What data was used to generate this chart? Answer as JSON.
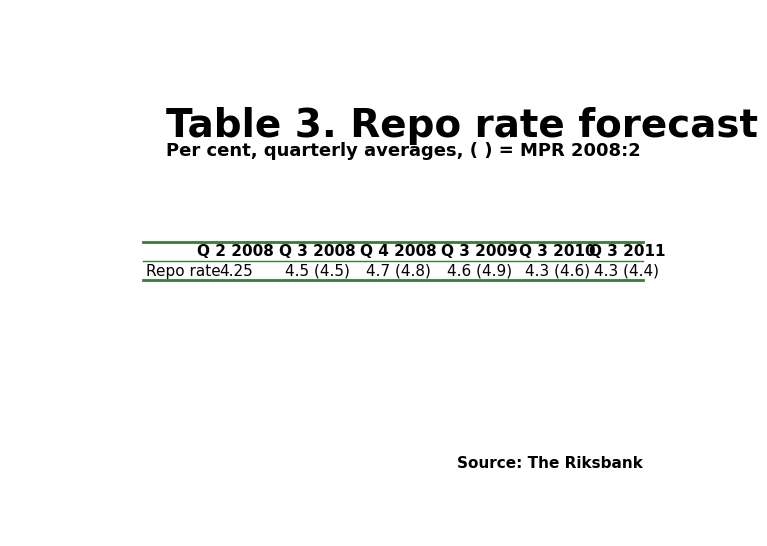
{
  "title": "Table 3. Repo rate forecast",
  "subtitle": "Per cent, quarterly averages, ( ) = MPR 2008:2",
  "columns": [
    "",
    "Q 2 2008",
    "Q 3 2008",
    "Q 4 2008",
    "Q 3 2009",
    "Q 3 2010",
    "Q 3 2011"
  ],
  "row_label": "Repo rate",
  "row_values": [
    "4.25",
    "4.5 (4.5)",
    "4.7 (4.8)",
    "4.6 (4.9)",
    "4.3 (4.6)",
    "4.3 (4.4)"
  ],
  "source_text": "Source: The Riksbank",
  "line_color": "#3a7a3a",
  "bar_color": "#1a3a6e",
  "background_color": "#ffffff",
  "title_fontsize": 28,
  "subtitle_fontsize": 13,
  "header_fontsize": 11,
  "data_fontsize": 11,
  "source_fontsize": 11,
  "logo_box_color": "#1a3a6e"
}
